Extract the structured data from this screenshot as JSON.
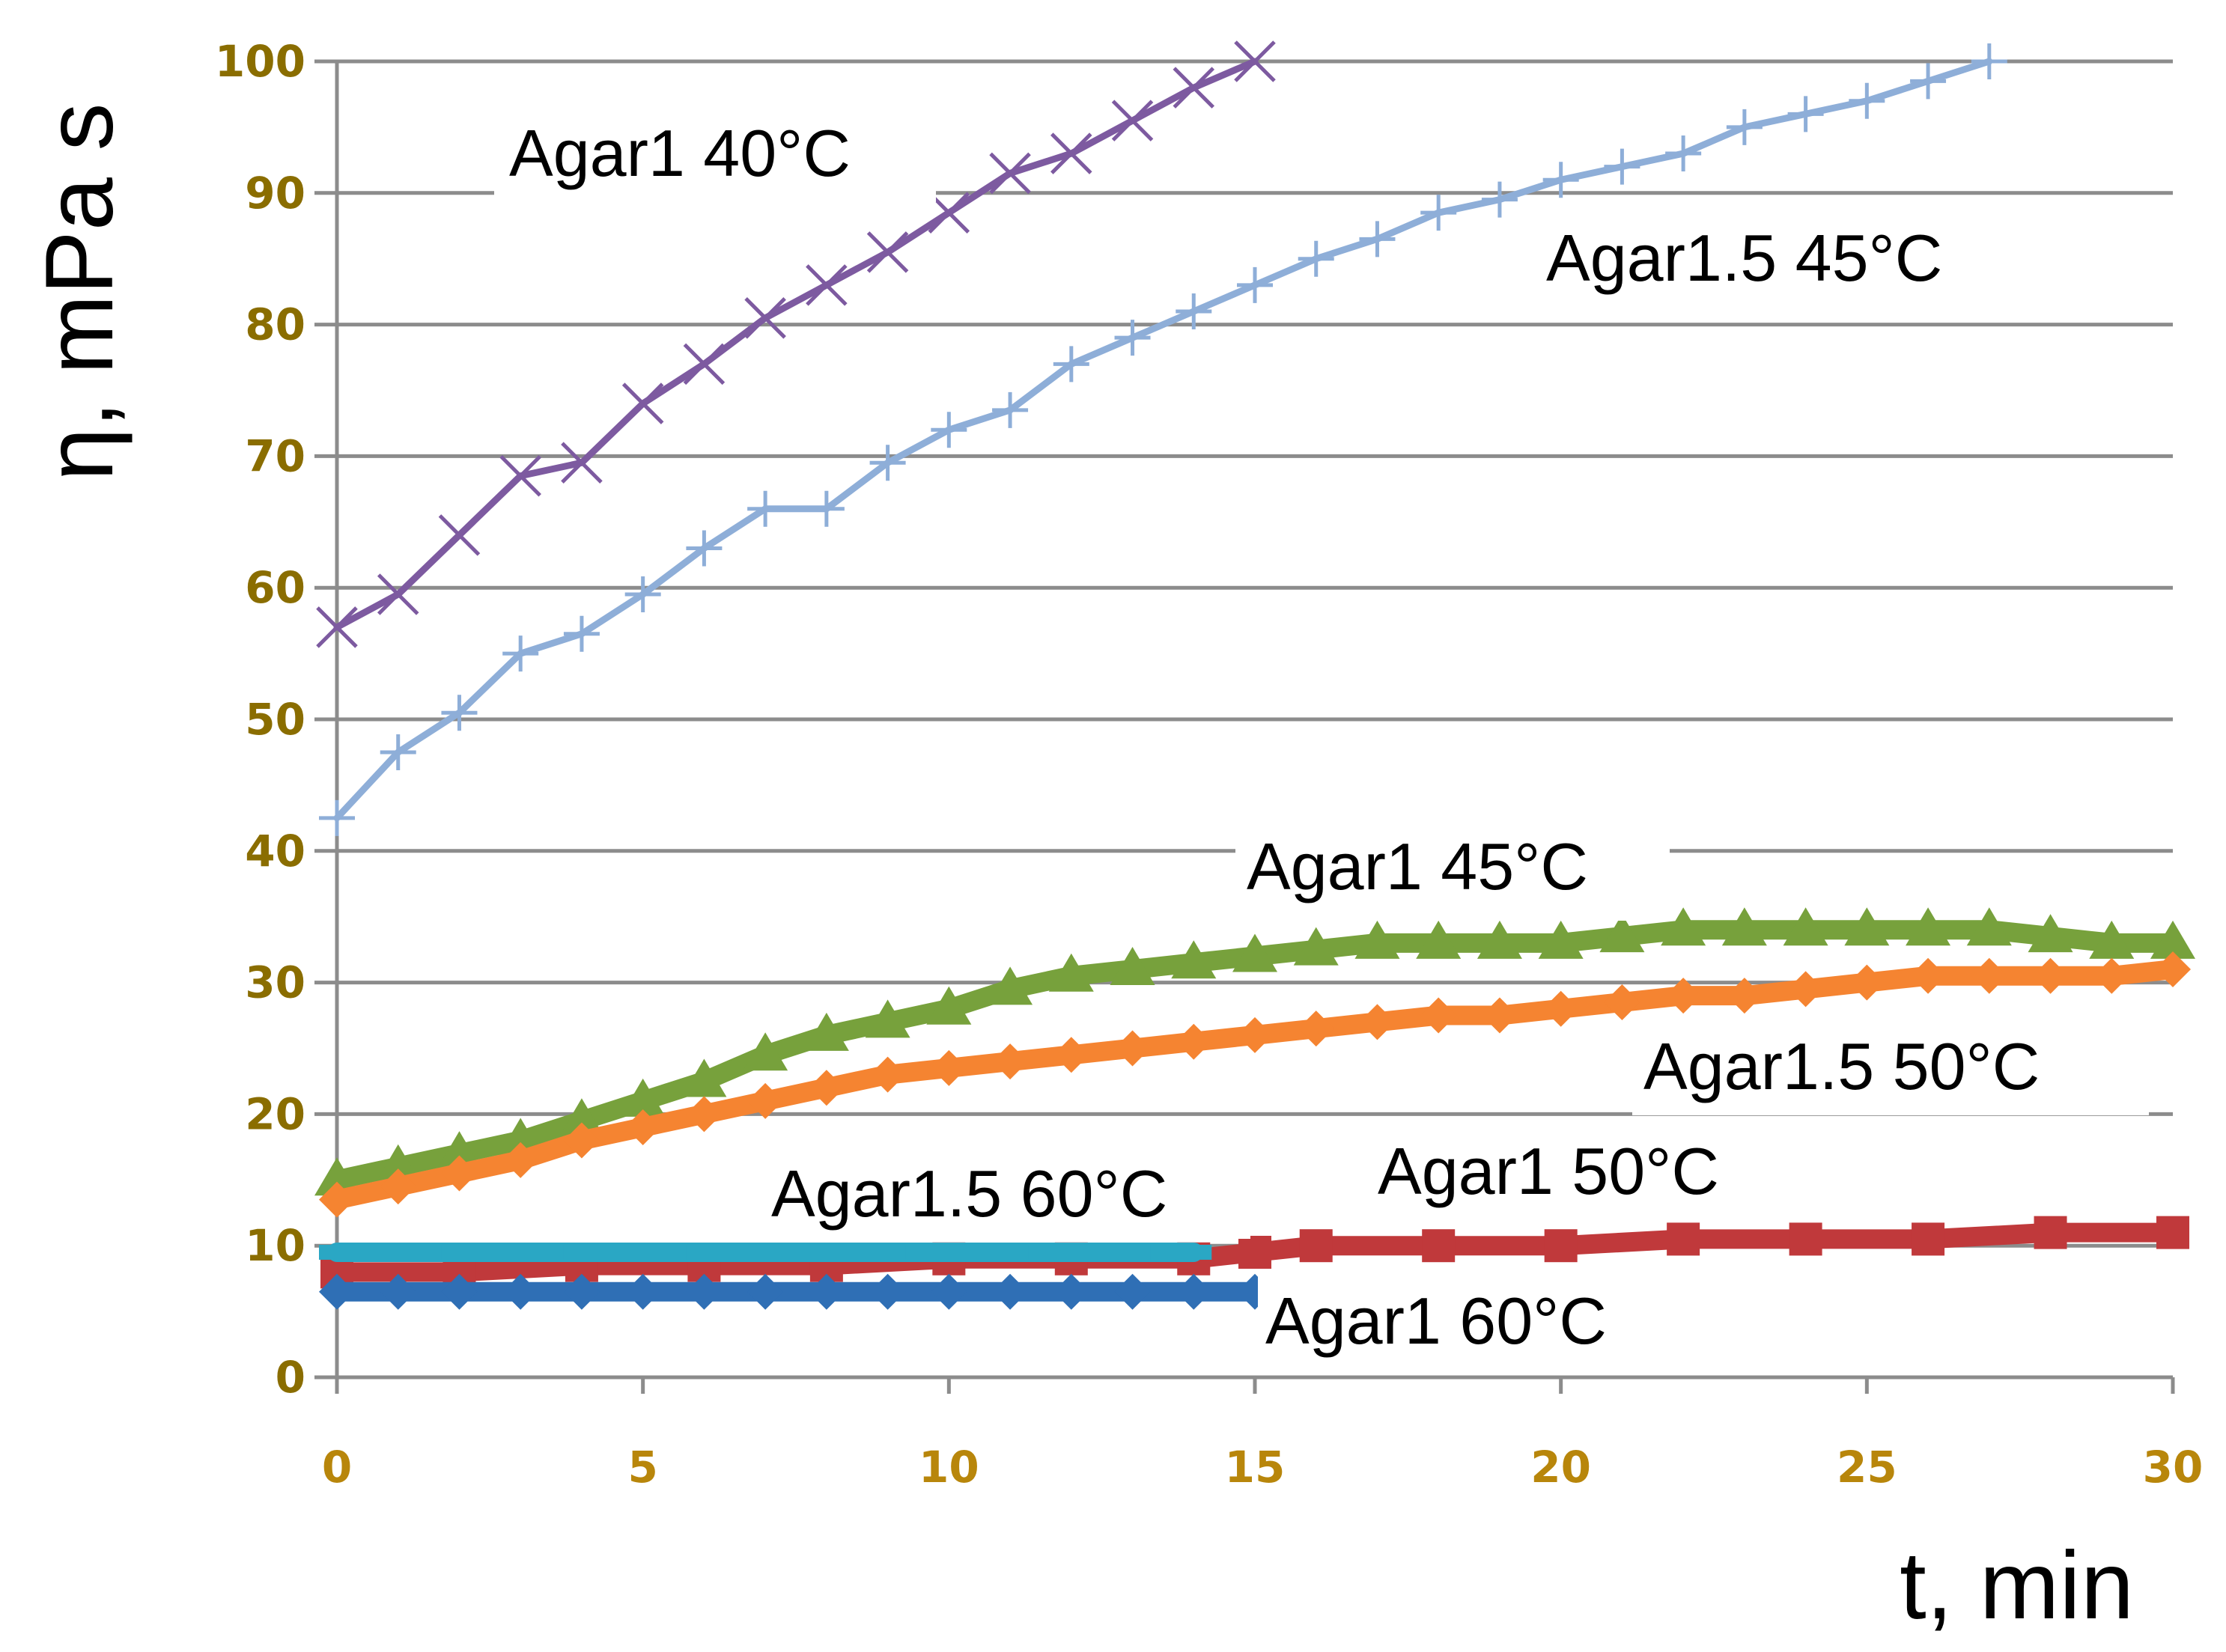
{
  "chart_data": {
    "type": "line",
    "title": "",
    "xlabel": "t, min",
    "ylabel": "η, mPa s",
    "xlim": [
      0,
      30
    ],
    "ylim": [
      0,
      100
    ],
    "x_ticks": [
      "0",
      "5",
      "10",
      "15",
      "20",
      "25",
      "30"
    ],
    "y_ticks": [
      "0",
      "10",
      "20",
      "30",
      "40",
      "50",
      "60",
      "70",
      "80",
      "90",
      "100"
    ],
    "grid": true,
    "series": [
      {
        "name": "Agar1 40°C",
        "color": "#7d5aa0",
        "marker": "x",
        "x": [
          0,
          1,
          2,
          3,
          4,
          5,
          6,
          7,
          8,
          9,
          10,
          11,
          12,
          13,
          14,
          15
        ],
        "y": [
          57,
          59.5,
          64,
          68.5,
          69.5,
          74,
          77,
          80.5,
          83,
          85.5,
          88.5,
          91.5,
          93,
          95.5,
          98,
          100
        ]
      },
      {
        "name": "Agar1.5 45°C",
        "color": "#8eaed8",
        "marker": "+",
        "x": [
          0,
          1,
          2,
          3,
          4,
          5,
          6,
          7,
          8,
          9,
          10,
          11,
          12,
          13,
          14,
          15,
          16,
          17,
          18,
          19,
          20,
          21,
          22,
          23,
          24,
          25,
          26,
          27
        ],
        "y": [
          42.5,
          47.5,
          50.5,
          55,
          56.5,
          59.5,
          63,
          66,
          66,
          69.5,
          72,
          73.5,
          77,
          79,
          81,
          83,
          85,
          86.5,
          88.5,
          89.5,
          91,
          92,
          93,
          95,
          96,
          97,
          98.5,
          100
        ]
      },
      {
        "name": "Agar1 45°C",
        "color": "#77a13c",
        "marker": "triangle",
        "x": [
          0,
          1,
          2,
          3,
          4,
          5,
          6,
          7,
          8,
          9,
          10,
          11,
          12,
          13,
          14,
          15,
          16,
          17,
          18,
          19,
          20,
          21,
          22,
          23,
          24,
          25,
          26,
          27,
          28,
          29,
          30
        ],
        "y": [
          15,
          16,
          17,
          18,
          19.5,
          21,
          22.5,
          24.5,
          26,
          27,
          28,
          29.5,
          30.5,
          31,
          31.5,
          32,
          32.5,
          33,
          33,
          33,
          33,
          33.5,
          34,
          34,
          34,
          34,
          34,
          34,
          33.5,
          33,
          33
        ]
      },
      {
        "name": "Agar1.5 50°C",
        "color": "#f58431",
        "marker": "diamond",
        "x": [
          0,
          1,
          2,
          3,
          4,
          5,
          6,
          7,
          8,
          9,
          10,
          11,
          12,
          13,
          14,
          15,
          16,
          17,
          18,
          19,
          20,
          21,
          22,
          23,
          24,
          25,
          26,
          27,
          28,
          29,
          30
        ],
        "y": [
          13.5,
          14.5,
          15.5,
          16.5,
          18,
          19,
          20,
          21,
          22,
          23,
          23.5,
          24,
          24.5,
          25,
          25.5,
          26,
          26.5,
          27,
          27.5,
          27.5,
          28,
          28.5,
          29,
          29,
          29.5,
          30,
          30.5,
          30.5,
          30.5,
          30.5,
          31
        ]
      },
      {
        "name": "Agar1 50°C",
        "color": "#c0393b",
        "marker": "square",
        "x": [
          0,
          2,
          4,
          6,
          8,
          10,
          12,
          14,
          15,
          16,
          18,
          20,
          22,
          24,
          26,
          28,
          30
        ],
        "y": [
          8,
          8,
          8.5,
          8.5,
          8.5,
          9,
          9,
          9,
          9.5,
          10,
          10,
          10,
          10.5,
          10.5,
          10.5,
          11,
          11
        ]
      },
      {
        "name": "Agar1.5 60°C",
        "color": "#2aa7c4",
        "marker": "dash",
        "x": [
          0,
          1,
          2,
          3,
          4,
          5,
          6,
          7,
          8,
          9,
          10,
          11,
          12,
          13,
          14
        ],
        "y": [
          9.5,
          9.5,
          9.5,
          9.5,
          9.5,
          9.5,
          9.5,
          9.5,
          9.5,
          9.5,
          9.5,
          9.5,
          9.5,
          9.5,
          9.5
        ]
      },
      {
        "name": "Agar1 60°C",
        "color": "#2f6fb5",
        "marker": "diamond",
        "x": [
          0,
          1,
          2,
          3,
          4,
          5,
          6,
          7,
          8,
          9,
          10,
          11,
          12,
          13,
          14,
          15
        ],
        "y": [
          6.5,
          6.5,
          6.5,
          6.5,
          6.5,
          6.5,
          6.5,
          6.5,
          6.5,
          6.5,
          6.5,
          6.5,
          6.5,
          6.5,
          6.5,
          6.5
        ]
      }
    ],
    "annotations": [
      {
        "text": "Agar1 40°C"
      },
      {
        "text": "Agar1.5 45°C"
      },
      {
        "text": "Agar1 45°C"
      },
      {
        "text": "Agar1.5 50°C"
      },
      {
        "text": "Agar1.5 60°C"
      },
      {
        "text": "Agar1 50°C"
      },
      {
        "text": "Agar1 60°C"
      }
    ]
  }
}
